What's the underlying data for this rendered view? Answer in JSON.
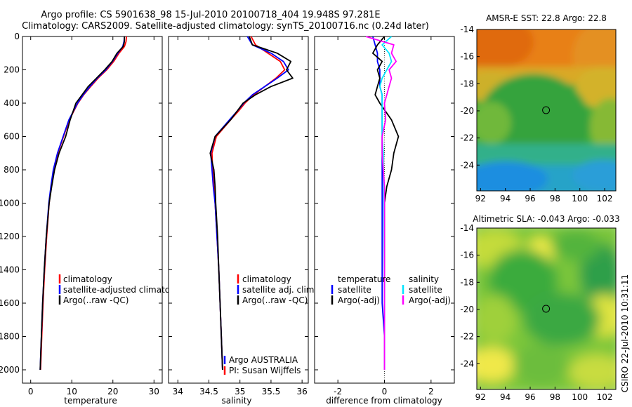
{
  "title_line1": "Argo profile: CS 5901638_98 15-Jul-2010 20100718_404 19.948S 97.281E",
  "title_line2": "Climatology: CARS2009. Satellite-adjusted climatology: synTS_20100716.nc (0.24d later)",
  "footer_stamp": "CSIRO 22-Jul-2010 10:31:11",
  "colors": {
    "climatology": "#ff0000",
    "satellite": "#0000ff",
    "argo": "#000000",
    "cyan": "#00e5ff",
    "magenta": "#ff00ff"
  },
  "chart_data": [
    {
      "type": "line",
      "id": "temperature",
      "xlabel": "temperature",
      "xlim": [
        -2,
        32
      ],
      "xticks": [
        0,
        10,
        20,
        30
      ],
      "ylim": [
        2080,
        0
      ],
      "yticks": [
        0,
        200,
        400,
        600,
        800,
        1000,
        1200,
        1400,
        1600,
        1800,
        2000
      ],
      "legend": [
        "climatology",
        "satellite-adjusted climatology",
        "Argo(..raw -QC)"
      ],
      "depth": [
        0,
        30,
        60,
        100,
        150,
        200,
        250,
        300,
        350,
        400,
        500,
        600,
        700,
        800,
        900,
        1000,
        1200,
        1400,
        1600,
        1800,
        2000
      ],
      "series": [
        {
          "name": "climatology",
          "color_key": "climatology",
          "values": [
            23.3,
            23.2,
            22.8,
            21.5,
            20.2,
            18.5,
            16.4,
            14.6,
            12.9,
            11.5,
            9.4,
            8.0,
            6.6,
            5.6,
            5.0,
            4.5,
            3.9,
            3.4,
            3.0,
            2.7,
            2.4
          ]
        },
        {
          "name": "satellite-adjusted climatology",
          "color_key": "satellite",
          "values": [
            22.8,
            22.7,
            22.4,
            21.2,
            19.9,
            18.3,
            16.2,
            14.4,
            12.8,
            11.4,
            9.3,
            7.9,
            6.5,
            5.5,
            4.9,
            4.4,
            3.8,
            3.3,
            2.9,
            2.6,
            2.3
          ]
        },
        {
          "name": "Argo(..raw -QC)",
          "color_key": "argo",
          "values": [
            22.8,
            22.8,
            22.5,
            21.0,
            19.8,
            18.0,
            16.0,
            14.0,
            12.5,
            11.0,
            9.6,
            8.5,
            6.9,
            5.8,
            5.1,
            4.5,
            3.8,
            3.3,
            2.9,
            2.6,
            2.3
          ]
        }
      ],
      "annotations": []
    },
    {
      "type": "line",
      "id": "salinity",
      "xlabel": "salinity",
      "xlim": [
        33.85,
        36.1
      ],
      "xticks": [
        34,
        34.5,
        35,
        35.5,
        36
      ],
      "ylim": [
        2080,
        0
      ],
      "yticks": [
        0,
        200,
        400,
        600,
        800,
        1000,
        1200,
        1400,
        1600,
        1800,
        2000
      ],
      "legend": [
        "climatology",
        "satellite adj. clim.",
        "Argo(..raw -QC)"
      ],
      "depth": [
        0,
        50,
        100,
        150,
        200,
        250,
        300,
        350,
        400,
        450,
        500,
        600,
        700,
        800,
        900,
        1000,
        1200,
        1400,
        1600,
        1800,
        2000
      ],
      "series": [
        {
          "name": "climatology",
          "color_key": "climatology",
          "values": [
            35.18,
            35.25,
            35.45,
            35.65,
            35.72,
            35.58,
            35.4,
            35.22,
            35.08,
            34.97,
            34.85,
            34.62,
            34.55,
            34.56,
            34.58,
            34.6,
            34.63,
            34.66,
            34.68,
            34.7,
            34.72
          ]
        },
        {
          "name": "satellite adj. clim.",
          "color_key": "satellite",
          "values": [
            35.12,
            35.2,
            35.5,
            35.7,
            35.78,
            35.6,
            35.4,
            35.2,
            35.06,
            34.95,
            34.83,
            34.6,
            34.53,
            34.55,
            34.57,
            34.6,
            34.63,
            34.66,
            34.68,
            34.7,
            34.72
          ]
        },
        {
          "name": "Argo(..raw -QC)",
          "color_key": "argo",
          "values": [
            35.15,
            35.2,
            35.6,
            35.82,
            35.75,
            35.85,
            35.5,
            35.25,
            35.05,
            34.95,
            34.85,
            34.6,
            34.52,
            34.58,
            34.6,
            34.61,
            34.64,
            34.66,
            34.68,
            34.7,
            34.72
          ]
        }
      ],
      "annotations": [
        "Argo AUSTRALIA",
        "PI: Susan Wijffels"
      ]
    },
    {
      "type": "line",
      "id": "difference",
      "xlabel": "difference from climatology",
      "xlim": [
        -3,
        3
      ],
      "xticks": [
        -2,
        0,
        2
      ],
      "ylim": [
        2080,
        0
      ],
      "yticks": [
        0,
        200,
        400,
        600,
        800,
        1000,
        1200,
        1400,
        1600,
        1800,
        2000
      ],
      "legend_temperature": [
        "temperature",
        "satellite",
        "Argo(-adj)"
      ],
      "legend_salinity": [
        "salinity",
        "satellite",
        "Argo(-adj)"
      ],
      "depth": [
        0,
        50,
        100,
        150,
        200,
        250,
        300,
        350,
        400,
        500,
        600,
        700,
        800,
        900,
        1000,
        1200,
        1400,
        1600,
        1800,
        2000
      ],
      "series": [
        {
          "name": "temperature satellite",
          "color_key": "satellite",
          "values": [
            -0.5,
            -0.4,
            -0.3,
            -0.3,
            -0.2,
            -0.2,
            -0.2,
            -0.1,
            -0.1,
            -0.1,
            -0.1,
            -0.1,
            -0.1,
            -0.1,
            -0.1,
            -0.1,
            -0.1,
            -0.1,
            0.0,
            0.0
          ]
        },
        {
          "name": "temperature Argo(-adj)",
          "color_key": "argo",
          "values": [
            0.0,
            -0.3,
            -0.5,
            -0.1,
            -0.3,
            -0.2,
            -0.3,
            -0.4,
            -0.2,
            0.3,
            0.6,
            0.4,
            0.3,
            0.1,
            0.0,
            0.0,
            0.0,
            0.0,
            0.0,
            0.0
          ]
        },
        {
          "name": "salinity satellite",
          "color_key": "cyan",
          "values": [
            0.3,
            -0.1,
            0.2,
            0.3,
            0.1,
            -0.1,
            -0.2,
            -0.1,
            -0.1,
            -0.1,
            -0.1,
            -0.05,
            -0.05,
            -0.03,
            -0.03,
            -0.02,
            -0.01,
            0.0,
            0.0,
            0.0
          ]
        },
        {
          "name": "salinity Argo(-adj)",
          "color_key": "magenta",
          "values": [
            -0.8,
            0.4,
            0.3,
            0.5,
            0.2,
            0.3,
            0.2,
            0.1,
            0.0,
            0.05,
            -0.1,
            -0.1,
            -0.05,
            0.0,
            0.0,
            0.0,
            0.0,
            0.0,
            0.0,
            0.0
          ]
        }
      ],
      "annotations": []
    }
  ],
  "maps": [
    {
      "id": "sst",
      "title": "AMSR-E SST: 22.8 Argo: 22.8",
      "xticks": [
        92,
        94,
        96,
        98,
        100,
        102
      ],
      "yticks": [
        -14,
        -16,
        -18,
        -20,
        -22,
        -24
      ],
      "xlim": [
        91.7,
        102.9
      ],
      "ylim": [
        -25.9,
        -14
      ],
      "marker_lon": 97.28,
      "marker_lat": -19.95
    },
    {
      "id": "sla",
      "title": "Altimetric SLA: -0.043 Argo: -0.033",
      "xticks": [
        92,
        94,
        96,
        98,
        100,
        102
      ],
      "yticks": [
        -14,
        -16,
        -18,
        -20,
        -22,
        -24
      ],
      "xlim": [
        91.7,
        102.9
      ],
      "ylim": [
        -25.9,
        -14
      ],
      "marker_lon": 97.28,
      "marker_lat": -19.95
    }
  ]
}
